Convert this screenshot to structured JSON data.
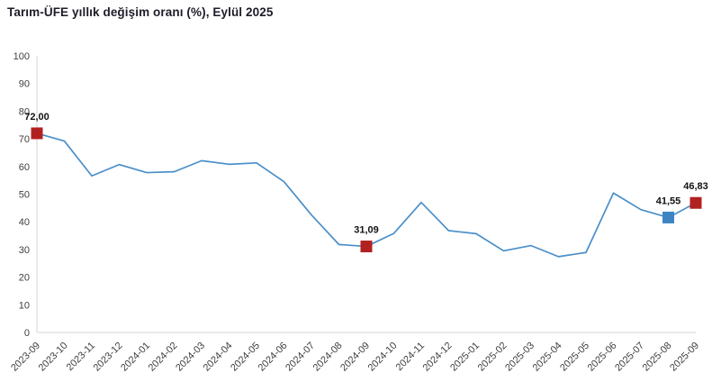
{
  "header": {
    "title": "Tarım-ÜFE yıllık değişim oranı (%), Eylül 2025"
  },
  "chart_data": {
    "type": "line",
    "title": "Tarım-ÜFE yıllık değişim oranı (%), Eylül 2025",
    "xlabel": "",
    "ylabel": "",
    "ylim": [
      0,
      100
    ],
    "ytick_step": 10,
    "yticks": [
      0,
      10,
      20,
      30,
      40,
      50,
      60,
      70,
      80,
      90,
      100
    ],
    "grid": false,
    "legend": "none",
    "categories": [
      "2023-09",
      "2023-10",
      "2023-11",
      "2023-12",
      "2024-01",
      "2024-02",
      "2024-03",
      "2024-04",
      "2024-05",
      "2024-06",
      "2024-07",
      "2024-08",
      "2024-09",
      "2024-10",
      "2024-11",
      "2024-12",
      "2025-01",
      "2025-02",
      "2025-03",
      "2025-04",
      "2025-05",
      "2025-06",
      "2025-07",
      "2025-08",
      "2025-09"
    ],
    "values": [
      72.0,
      69.2,
      56.6,
      60.7,
      57.8,
      58.1,
      62.1,
      60.8,
      61.3,
      54.5,
      42.5,
      31.8,
      31.09,
      35.8,
      47.0,
      36.8,
      35.7,
      29.5,
      31.4,
      27.4,
      28.9,
      50.4,
      44.4,
      41.55,
      46.83
    ],
    "highlights": [
      {
        "index": 0,
        "category": "2023-09",
        "label": "72,00",
        "color": "#b22121"
      },
      {
        "index": 12,
        "category": "2024-09",
        "label": "31,09",
        "color": "#b22121"
      },
      {
        "index": 23,
        "category": "2025-08",
        "label": "41,55",
        "color": "#3c85c2"
      },
      {
        "index": 24,
        "category": "2025-09",
        "label": "46,83",
        "color": "#b22121"
      }
    ],
    "line_color": "#4a8fc9",
    "axis_color": "#d6d6d6",
    "tick_label_color": "#3f3f3f",
    "data_label_color": "#121212",
    "marker_shape": "square"
  }
}
